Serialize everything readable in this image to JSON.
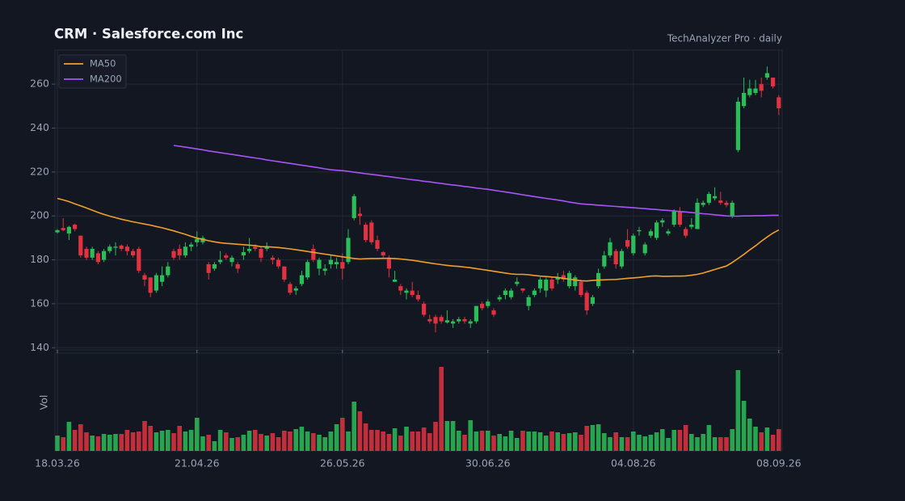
{
  "chart_data": {
    "type": "candlestick",
    "title": "CRM  ·  Salesforce.com Inc",
    "subtitle": "TechAnalyzer Pro · daily",
    "up_color": "#2bbd57",
    "down_color": "#e2323f",
    "grid": true,
    "legend": "top-left",
    "categories": [
      "18.03.26",
      null,
      null,
      null,
      null,
      null,
      null,
      null,
      null,
      null,
      null,
      null,
      null,
      null,
      null,
      null,
      null,
      null,
      null,
      null,
      null,
      null,
      null,
      null,
      "21.04.26",
      null,
      null,
      null,
      null,
      null,
      null,
      null,
      null,
      null,
      null,
      null,
      null,
      null,
      null,
      null,
      null,
      null,
      null,
      null,
      null,
      null,
      null,
      null,
      null,
      "26.05.26",
      null,
      null,
      null,
      null,
      null,
      null,
      null,
      null,
      null,
      null,
      null,
      null,
      null,
      null,
      null,
      null,
      null,
      null,
      null,
      null,
      null,
      null,
      null,
      null,
      "30.06.26",
      null,
      null,
      null,
      null,
      null,
      null,
      null,
      null,
      null,
      null,
      null,
      null,
      null,
      null,
      null,
      null,
      null,
      null,
      null,
      null,
      null,
      null,
      null,
      null,
      "04.08.26",
      null,
      null,
      null,
      null,
      null,
      null,
      null,
      null,
      null,
      null,
      null,
      null,
      null,
      null,
      null,
      null,
      null,
      null,
      null,
      null,
      null,
      null,
      null,
      null,
      "08.09.26"
    ],
    "open": [
      192.5,
      194.5,
      192,
      196,
      191,
      185,
      181,
      183,
      180,
      184,
      185.5,
      186.5,
      186,
      184,
      185,
      173,
      172,
      166,
      170,
      173,
      184,
      185,
      182,
      186,
      188,
      188,
      178,
      176,
      179,
      182,
      179,
      178,
      182,
      184,
      186,
      185,
      185,
      181,
      180,
      177,
      169,
      166,
      169,
      172,
      185,
      176,
      175,
      178,
      178,
      179,
      179,
      199,
      201,
      196,
      197,
      189,
      183.5,
      181,
      170,
      168,
      165,
      166,
      164,
      160,
      153,
      154,
      154,
      151.5,
      151,
      152,
      153,
      151,
      152,
      160,
      159,
      157,
      162,
      164,
      163,
      169,
      167,
      159,
      164,
      167,
      166,
      171,
      171,
      173,
      168,
      168,
      170,
      165,
      160,
      168,
      177,
      182,
      184,
      177,
      189,
      183,
      193,
      183,
      191,
      190,
      197,
      192,
      196,
      202,
      194,
      195,
      194,
      205,
      206,
      208,
      207,
      206,
      200,
      230,
      250,
      255,
      256,
      260,
      263,
      263,
      254
    ],
    "high": [
      194,
      199,
      195.5,
      196.5,
      191,
      186,
      186,
      184,
      185,
      187,
      188,
      187,
      187,
      185,
      186,
      174,
      172,
      174,
      177,
      179,
      185,
      187,
      188,
      188,
      193,
      191,
      179,
      179,
      184,
      183,
      182,
      179,
      186,
      190,
      187,
      186,
      188,
      182,
      181,
      177,
      170,
      168,
      175,
      180,
      187,
      181,
      178,
      182,
      181,
      183,
      194,
      210,
      204,
      197,
      198,
      191,
      184,
      182,
      175,
      169,
      167,
      170,
      166,
      161,
      155,
      155,
      155,
      157,
      153,
      154,
      154,
      153,
      159,
      161,
      162,
      158,
      164,
      167,
      167,
      172,
      167,
      164,
      167,
      172,
      172,
      172,
      174,
      175,
      175,
      173,
      171,
      166,
      164,
      176,
      184,
      190,
      185,
      185,
      194,
      192,
      195,
      188,
      194,
      198,
      199,
      194,
      203,
      204,
      195,
      199,
      208,
      207,
      211,
      213,
      211,
      207,
      207,
      254,
      263,
      262,
      262,
      263,
      268,
      263,
      255
    ],
    "low": [
      192,
      193,
      189,
      193,
      181,
      180,
      180,
      178,
      179,
      183,
      182,
      184,
      182,
      181,
      174,
      168,
      163,
      165,
      168,
      172,
      180,
      180,
      181,
      184,
      186,
      187,
      171,
      175,
      178,
      180,
      177,
      174,
      180,
      183,
      184,
      179,
      184,
      178,
      176,
      170,
      164,
      164,
      168,
      171,
      179,
      173,
      173,
      176,
      176,
      171,
      178,
      198,
      196,
      188,
      187,
      184,
      181,
      172,
      170,
      164,
      162,
      163,
      161,
      154,
      151,
      147,
      151,
      151,
      149,
      151,
      151,
      149,
      151,
      157,
      158,
      154,
      161,
      162,
      162,
      168,
      165,
      157,
      163,
      165,
      163,
      166,
      169,
      170,
      167,
      166,
      163,
      155,
      159,
      167,
      176,
      181,
      176,
      176,
      185,
      182,
      191,
      182,
      190,
      189,
      195,
      191,
      195,
      195,
      190,
      194,
      194,
      204,
      205,
      207,
      205,
      204,
      199,
      229,
      249,
      254,
      255,
      254,
      262,
      258,
      246
    ],
    "close": [
      193.5,
      193.5,
      195,
      194,
      182,
      181,
      185,
      179,
      184,
      186,
      186,
      185,
      184,
      182,
      175,
      171,
      165,
      173,
      173,
      177,
      181,
      182,
      186,
      187,
      189.5,
      190,
      174,
      178,
      180,
      181,
      181,
      176,
      183.5,
      185,
      185,
      181,
      186,
      180,
      177,
      171,
      165,
      167,
      173,
      179,
      180,
      180,
      176,
      180,
      179,
      176,
      190,
      209,
      200,
      189,
      188,
      185,
      182,
      176,
      171,
      166,
      166,
      164,
      162,
      155,
      152,
      151,
      152,
      152.5,
      152,
      153,
      152,
      152,
      159,
      158,
      161,
      155,
      163,
      166,
      166,
      170,
      166,
      163,
      166,
      171,
      171,
      167,
      172,
      171,
      174,
      172,
      164,
      157,
      163,
      174,
      182,
      188,
      178,
      184,
      186,
      191,
      193.5,
      187,
      193,
      197,
      198,
      193,
      202,
      196,
      191,
      196,
      206,
      206,
      210,
      209,
      206,
      205,
      206,
      252,
      256,
      258,
      258,
      257,
      265,
      259,
      249
    ],
    "ylim": [
      139,
      275.5
    ],
    "yticks": [
      140,
      160,
      180,
      200,
      220,
      240,
      260
    ],
    "series": [
      {
        "name": "MA50",
        "color": "#f0a02a",
        "values": [
          208,
          207.3,
          206.5,
          205.5,
          204.6,
          203.6,
          202.6,
          201.6,
          200.7,
          199.9,
          199.2,
          198.5,
          197.9,
          197.3,
          196.8,
          196.3,
          195.8,
          195.2,
          194.6,
          193.9,
          193.2,
          192.4,
          191.6,
          190.7,
          189.9,
          189.3,
          188.7,
          188.2,
          187.8,
          187.5,
          187.3,
          187.1,
          186.9,
          186.7,
          186.5,
          186,
          186,
          185.8,
          185.6,
          185.3,
          185,
          184.6,
          184.2,
          183.8,
          183.4,
          183,
          182.6,
          182.2,
          181.8,
          181.4,
          181,
          180.6,
          180.4,
          180.5,
          180.6,
          180.6,
          180.7,
          180.7,
          180.6,
          180.4,
          180.1,
          179.8,
          179.4,
          179,
          178.6,
          178.2,
          177.8,
          177.5,
          177.2,
          177,
          176.7,
          176.4,
          176,
          175.6,
          175.2,
          174.8,
          174.4,
          174,
          173.6,
          173.4,
          173.4,
          173.2,
          172.9,
          172.6,
          172.4,
          172.2,
          172,
          171.6,
          171.2,
          170.8,
          170.5,
          170.4,
          170.6,
          170.8,
          170.9,
          171,
          171.1,
          171.3,
          171.6,
          171.8,
          172,
          172.3,
          172.6,
          172.7,
          172.5,
          172.5,
          172.6,
          172.6,
          172.7,
          173,
          173.4,
          174,
          174.8,
          175.6,
          176.4,
          177.2,
          178.8,
          180.6,
          182.5,
          184.5,
          186.4,
          188.5,
          190.4,
          192.2,
          193.6
        ]
      },
      {
        "name": "MA200",
        "color": "#a855f7",
        "values": [
          null,
          null,
          null,
          null,
          null,
          null,
          null,
          null,
          null,
          null,
          null,
          null,
          null,
          null,
          null,
          null,
          null,
          null,
          null,
          null,
          232.1,
          231.7,
          231.3,
          230.9,
          230.5,
          230.1,
          229.6,
          229.2,
          228.8,
          228.4,
          228,
          227.6,
          227.2,
          226.8,
          226.4,
          226,
          225.5,
          225.1,
          224.7,
          224.3,
          223.9,
          223.5,
          223.1,
          222.7,
          222.3,
          221.9,
          221.4,
          221,
          220.8,
          220.6,
          220.3,
          219.9,
          219.6,
          219.2,
          218.9,
          218.6,
          218.2,
          217.9,
          217.5,
          217.2,
          216.8,
          216.5,
          216.2,
          215.8,
          215.5,
          215.1,
          214.8,
          214.4,
          214.1,
          213.8,
          213.4,
          213.1,
          212.7,
          212.4,
          212.1,
          211.7,
          211.3,
          210.9,
          210.5,
          210.1,
          209.6,
          209.2,
          208.8,
          208.4,
          208,
          207.6,
          207.2,
          206.8,
          206.3,
          205.9,
          205.5,
          205.3,
          205.1,
          204.9,
          204.7,
          204.5,
          204.3,
          204.1,
          203.9,
          203.7,
          203.5,
          203.3,
          203.1,
          202.9,
          202.7,
          202.5,
          202.3,
          202,
          201.8,
          201.5,
          201.3,
          201,
          200.8,
          200.5,
          200.3,
          200,
          199.9,
          199.9,
          200,
          200,
          200.1,
          200.1,
          200.2,
          200.3,
          200.3
        ]
      }
    ],
    "volume": {
      "label": "Vol",
      "ylim": [
        0,
        121
      ],
      "values": [
        19,
        17,
        36,
        26,
        33,
        23,
        19,
        18,
        21,
        20,
        21,
        21,
        26,
        23,
        24,
        37,
        31,
        23,
        25,
        26,
        22,
        31,
        24,
        26,
        41,
        18,
        20,
        12,
        26,
        23,
        16,
        17,
        20,
        25,
        26,
        21,
        19,
        22,
        17,
        25,
        24,
        27,
        30,
        24,
        22,
        20,
        17,
        24,
        33,
        41,
        24,
        61,
        49,
        34,
        26,
        26,
        24,
        21,
        28,
        19,
        30,
        24,
        24,
        29,
        22,
        36,
        104,
        37,
        37,
        25,
        20,
        38,
        24,
        25,
        25,
        19,
        21,
        18,
        25,
        16,
        25,
        24,
        24,
        23,
        19,
        24,
        23,
        21,
        22,
        23,
        20,
        31,
        32,
        33,
        22,
        17,
        23,
        17,
        17,
        24,
        20,
        18,
        20,
        23,
        27,
        16,
        26,
        26,
        32,
        21,
        17,
        21,
        32,
        17,
        17,
        17,
        27,
        100,
        62,
        40,
        30,
        23,
        29,
        20,
        27
      ]
    }
  }
}
